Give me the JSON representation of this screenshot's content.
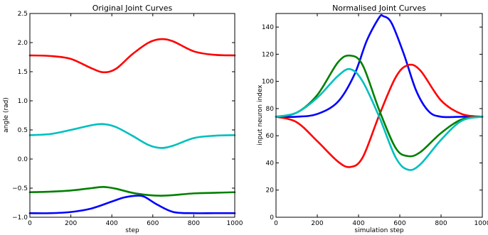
{
  "chart_data": [
    {
      "type": "line",
      "title": "Original Joint Curves",
      "xlabel": "step",
      "ylabel": "angle (rad)",
      "xlim": [
        0,
        1000
      ],
      "ylim": [
        -1.0,
        2.5
      ],
      "xticks": [
        0,
        200,
        400,
        600,
        800,
        1000
      ],
      "xtick_labels": [
        "0",
        "200",
        "400",
        "600",
        "800",
        "1000"
      ],
      "yticks": [
        -1.0,
        -0.5,
        0.0,
        0.5,
        1.0,
        1.5,
        2.0,
        2.5
      ],
      "ytick_labels": [
        "−1.0",
        "−0.5",
        "0.0",
        "0.5",
        "1.0",
        "1.5",
        "2.0",
        "2.5"
      ],
      "grid": false,
      "legend": "none",
      "series": [
        {
          "color": "#ff0000",
          "x": [
            0,
            100,
            200,
            300,
            360,
            420,
            500,
            580,
            640,
            700,
            800,
            900,
            1000
          ],
          "y": [
            1.78,
            1.77,
            1.72,
            1.56,
            1.49,
            1.55,
            1.8,
            2.0,
            2.06,
            2.02,
            1.85,
            1.79,
            1.78
          ]
        },
        {
          "color": "#00bfbf",
          "x": [
            0,
            100,
            200,
            300,
            360,
            420,
            500,
            580,
            640,
            700,
            800,
            900,
            1000
          ],
          "y": [
            0.41,
            0.43,
            0.5,
            0.58,
            0.6,
            0.55,
            0.4,
            0.24,
            0.19,
            0.23,
            0.36,
            0.4,
            0.41
          ]
        },
        {
          "color": "#008000",
          "x": [
            0,
            100,
            200,
            300,
            360,
            420,
            500,
            580,
            640,
            700,
            800,
            900,
            1000
          ],
          "y": [
            -0.57,
            -0.56,
            -0.54,
            -0.5,
            -0.48,
            -0.51,
            -0.58,
            -0.62,
            -0.63,
            -0.62,
            -0.59,
            -0.58,
            -0.57
          ]
        },
        {
          "color": "#0000ff",
          "x": [
            0,
            100,
            200,
            300,
            400,
            460,
            520,
            560,
            620,
            700,
            800,
            900,
            1000
          ],
          "y": [
            -0.93,
            -0.93,
            -0.91,
            -0.85,
            -0.73,
            -0.66,
            -0.63,
            -0.65,
            -0.78,
            -0.91,
            -0.93,
            -0.93,
            -0.93
          ]
        }
      ]
    },
    {
      "type": "line",
      "title": "Normalised Joint Curves",
      "xlabel": "simulation step",
      "ylabel": "input neuron index",
      "xlim": [
        0,
        1000
      ],
      "ylim": [
        0,
        150
      ],
      "xticks": [
        0,
        200,
        400,
        600,
        800,
        1000
      ],
      "xtick_labels": [
        "0",
        "200",
        "400",
        "600",
        "800",
        "1000"
      ],
      "yticks": [
        0,
        20,
        40,
        60,
        80,
        100,
        120,
        140
      ],
      "ytick_labels": [
        "0",
        "20",
        "40",
        "60",
        "80",
        "100",
        "120",
        "140"
      ],
      "grid": false,
      "legend": "none",
      "series": [
        {
          "color": "#0000ff",
          "x": [
            0,
            100,
            200,
            300,
            380,
            440,
            500,
            520,
            560,
            620,
            680,
            740,
            800,
            900,
            1000
          ],
          "y": [
            74,
            74,
            76,
            85,
            105,
            130,
            147,
            148,
            143,
            120,
            93,
            78,
            74,
            74,
            74
          ]
        },
        {
          "color": "#ff0000",
          "x": [
            0,
            100,
            200,
            300,
            360,
            420,
            500,
            580,
            640,
            700,
            800,
            900,
            1000
          ],
          "y": [
            74,
            70,
            56,
            41,
            37,
            44,
            75,
            103,
            112,
            108,
            86,
            76,
            74
          ]
        },
        {
          "color": "#008000",
          "x": [
            0,
            100,
            200,
            300,
            360,
            420,
            500,
            580,
            640,
            700,
            800,
            900,
            1000
          ],
          "y": [
            74,
            77,
            90,
            114,
            119,
            112,
            79,
            51,
            45,
            48,
            62,
            72,
            74
          ]
        },
        {
          "color": "#00bfbf",
          "x": [
            0,
            100,
            200,
            300,
            360,
            420,
            500,
            580,
            640,
            700,
            800,
            900,
            1000
          ],
          "y": [
            74,
            77,
            88,
            104,
            109,
            100,
            74,
            44,
            35,
            39,
            57,
            71,
            74
          ]
        }
      ]
    }
  ]
}
